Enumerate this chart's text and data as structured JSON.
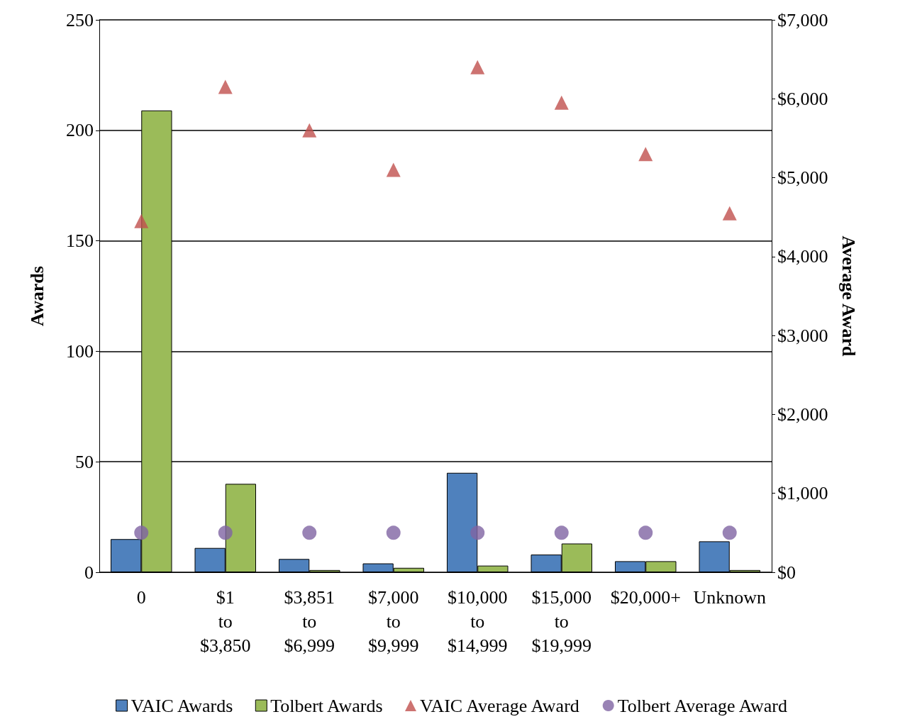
{
  "chart_data": {
    "type": "bar",
    "ylabel": "Awards",
    "y2label": "Average Award",
    "categories": [
      "0",
      "$1\nto\n$3,850",
      "$3,851\nto\n$6,999",
      "$7,000\nto\n$9,999",
      "$10,000\nto\n$14,999",
      "$15,000\nto\n$19,999",
      "$20,000+",
      "Unknown"
    ],
    "series": [
      {
        "name": "VAIC Awards",
        "color": "#4f81bd",
        "values": [
          15,
          11,
          6,
          4,
          45,
          8,
          5,
          14
        ]
      },
      {
        "name": "Tolbert Awards",
        "color": "#9bbb59",
        "values": [
          209,
          40,
          1,
          2,
          3,
          13,
          5,
          1
        ]
      },
      {
        "name": "VAIC Average Award",
        "type": "scatter",
        "axis": "y2",
        "marker": "triangle",
        "color": "#c0504d",
        "values": [
          4450,
          6150,
          5600,
          5100,
          6400,
          5950,
          5300,
          4550
        ]
      },
      {
        "name": "Tolbert Average Award",
        "type": "scatter",
        "axis": "y2",
        "marker": "circle",
        "color": "#8064a2",
        "values": [
          500,
          500,
          500,
          500,
          500,
          500,
          500,
          500
        ]
      }
    ],
    "ylim": [
      0,
      250
    ],
    "yticks": [
      0,
      50,
      100,
      150,
      200,
      250
    ],
    "y2lim": [
      0,
      7000
    ],
    "y2ticks": [
      {
        "value": 0,
        "label": "$0"
      },
      {
        "value": 1000,
        "label": "$1,000"
      },
      {
        "value": 2000,
        "label": "$2,000"
      },
      {
        "value": 3000,
        "label": "$3,000"
      },
      {
        "value": 4000,
        "label": "$4,000"
      },
      {
        "value": 5000,
        "label": "$5,000"
      },
      {
        "value": 6000,
        "label": "$6,000"
      },
      {
        "value": 7000,
        "label": "$7,000"
      }
    ],
    "grid": "y",
    "legend": "bottom"
  }
}
